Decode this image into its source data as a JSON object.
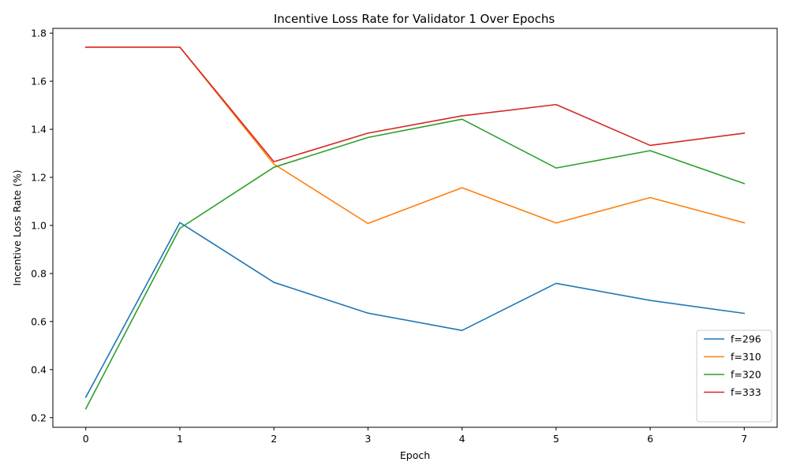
{
  "chart_data": {
    "type": "line",
    "title": "Incentive Loss Rate for Validator 1 Over Epochs",
    "xlabel": "Epoch",
    "ylabel": "Incentive Loss Rate (%)",
    "x": [
      0,
      1,
      2,
      3,
      4,
      5,
      6,
      7
    ],
    "xlim": [
      -0.35,
      7.35
    ],
    "ylim": [
      0.16,
      1.82
    ],
    "xticks": [
      "0",
      "1",
      "2",
      "3",
      "4",
      "5",
      "6",
      "7"
    ],
    "yticks": [
      "0.2",
      "0.4",
      "0.6",
      "0.8",
      "1.0",
      "1.2",
      "1.4",
      "1.6",
      "1.8"
    ],
    "ytick_values": [
      0.2,
      0.4,
      0.6,
      0.8,
      1.0,
      1.2,
      1.4,
      1.6,
      1.8
    ],
    "grid": false,
    "legend_position": "bottom-right",
    "series": [
      {
        "name": "f=296",
        "color": "#1f77b4",
        "values": [
          0.285,
          1.012,
          0.763,
          0.635,
          0.563,
          0.759,
          0.688,
          0.634
        ]
      },
      {
        "name": "f=310",
        "color": "#ff7f0e",
        "values": [
          1.742,
          1.742,
          1.255,
          1.008,
          1.157,
          1.01,
          1.116,
          1.011
        ]
      },
      {
        "name": "f=320",
        "color": "#2ca02c",
        "values": [
          0.237,
          0.988,
          1.242,
          1.366,
          1.442,
          1.239,
          1.311,
          1.174
        ]
      },
      {
        "name": "f=333",
        "color": "#d62728",
        "values": [
          1.742,
          1.742,
          1.265,
          1.384,
          1.456,
          1.503,
          1.333,
          1.384
        ]
      }
    ]
  }
}
